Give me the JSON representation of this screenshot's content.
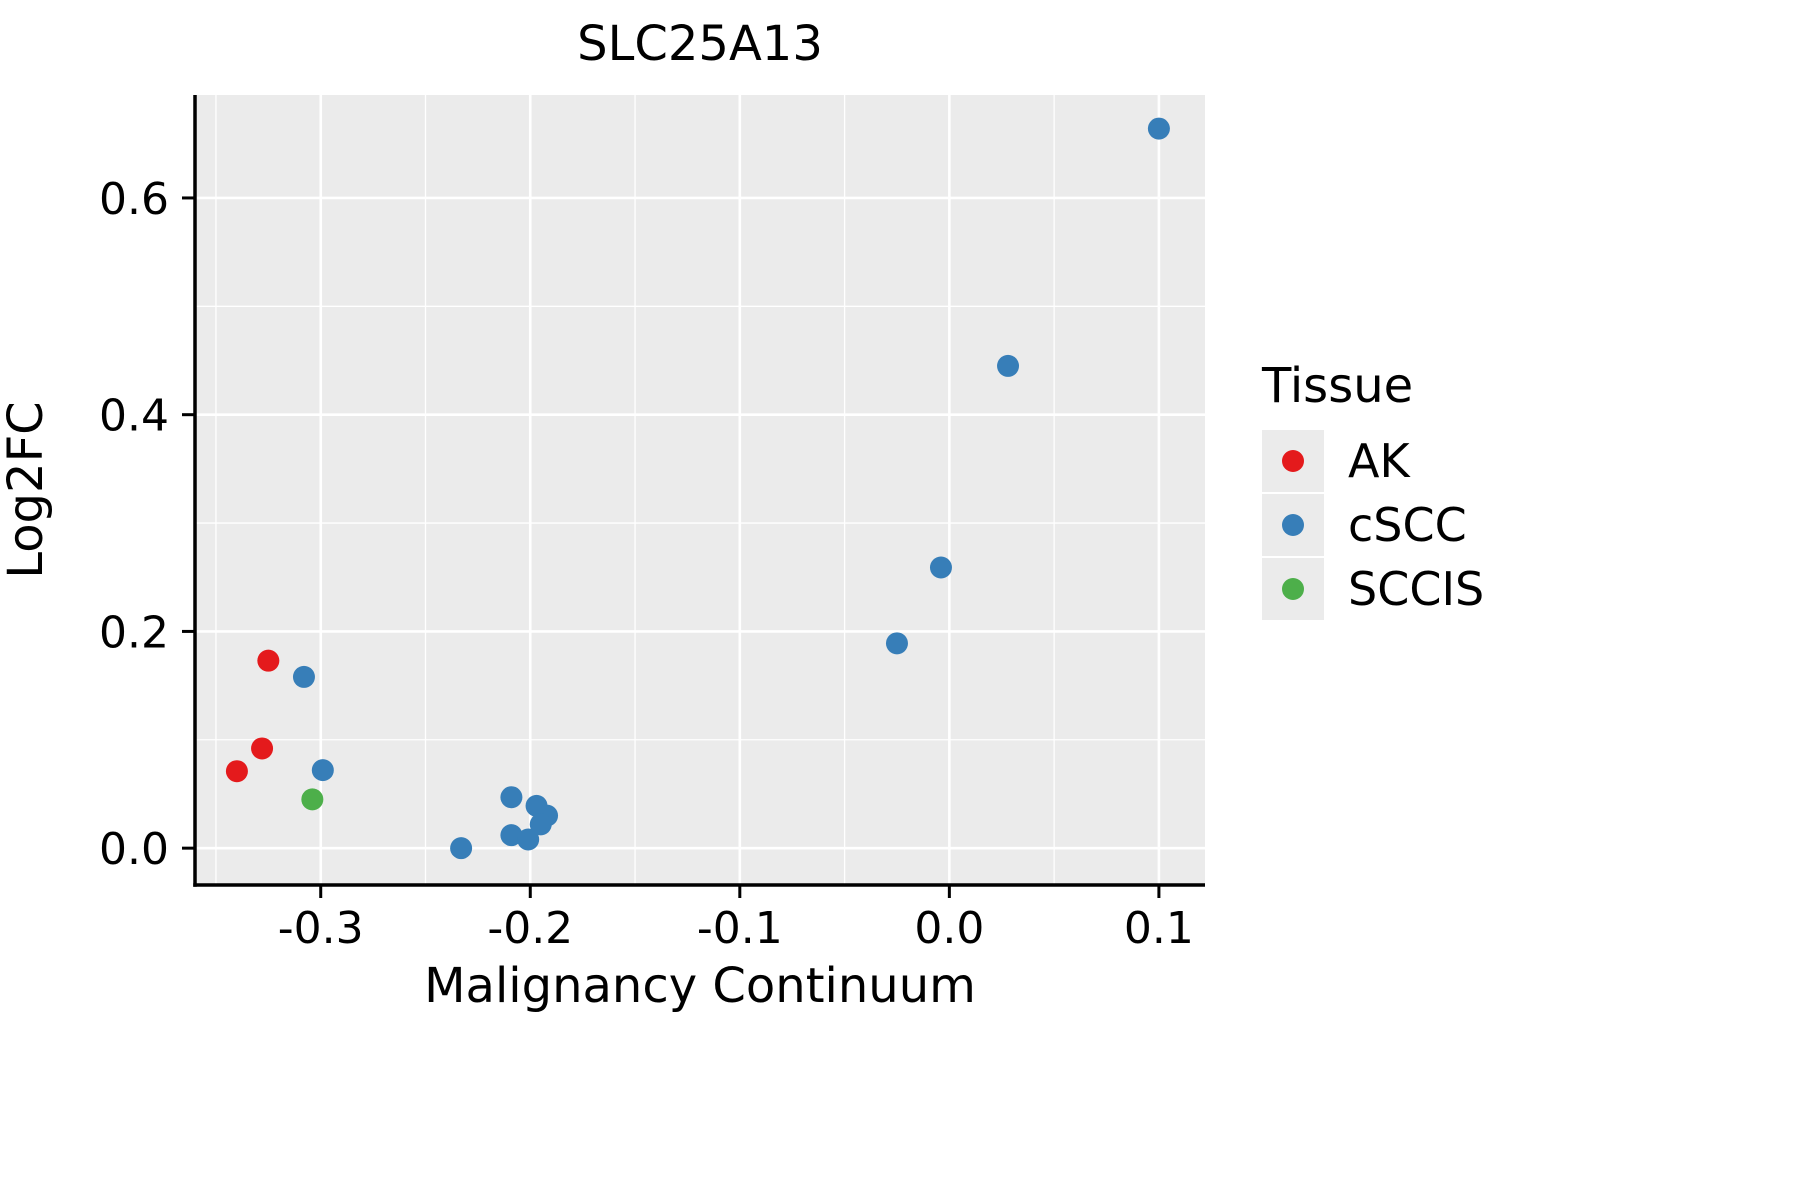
{
  "chart_data": {
    "type": "scatter",
    "title": "SLC25A13",
    "xlabel": "Malignancy Continuum",
    "ylabel": "Log2FC",
    "xlim": [
      -0.36,
      0.122
    ],
    "ylim": [
      -0.034,
      0.695
    ],
    "x_ticks": [
      -0.3,
      -0.2,
      -0.1,
      0.0,
      0.1
    ],
    "x_tick_labels": [
      "-0.3",
      "-0.2",
      "-0.1",
      "0.0",
      "0.1"
    ],
    "y_ticks": [
      0.0,
      0.2,
      0.4,
      0.6
    ],
    "y_tick_labels": [
      "0.0",
      "0.2",
      "0.4",
      "0.6"
    ],
    "x_minor_ticks": [
      -0.35,
      -0.25,
      -0.15,
      -0.05,
      0.05,
      0.15
    ],
    "y_minor_ticks": [
      0.1,
      0.3,
      0.5,
      0.7
    ],
    "grid": true,
    "panel_background": "#EBEBEB",
    "grid_color": "#FFFFFF",
    "point_radius": 11,
    "legend": {
      "title": "Tissue",
      "position": "right",
      "entries": [
        {
          "label": "AK",
          "color": "#E41A1C"
        },
        {
          "label": "cSCC",
          "color": "#377EB8"
        },
        {
          "label": "SCCIS",
          "color": "#4DAF4A"
        }
      ]
    },
    "series": [
      {
        "name": "AK",
        "color": "#E41A1C",
        "points": [
          [
            -0.34,
            0.071
          ],
          [
            -0.328,
            0.092
          ],
          [
            -0.325,
            0.173
          ]
        ]
      },
      {
        "name": "cSCC",
        "color": "#377EB8",
        "points": [
          [
            -0.308,
            0.158
          ],
          [
            -0.299,
            0.072
          ],
          [
            -0.233,
            0.0
          ],
          [
            -0.209,
            0.047
          ],
          [
            -0.197,
            0.039
          ],
          [
            -0.192,
            0.03
          ],
          [
            -0.195,
            0.022
          ],
          [
            -0.209,
            0.012
          ],
          [
            -0.201,
            0.008
          ],
          [
            -0.025,
            0.189
          ],
          [
            -0.004,
            0.259
          ],
          [
            0.028,
            0.445
          ],
          [
            0.1,
            0.664
          ]
        ]
      },
      {
        "name": "SCCIS",
        "color": "#4DAF4A",
        "points": [
          [
            -0.304,
            0.045
          ]
        ]
      }
    ]
  }
}
